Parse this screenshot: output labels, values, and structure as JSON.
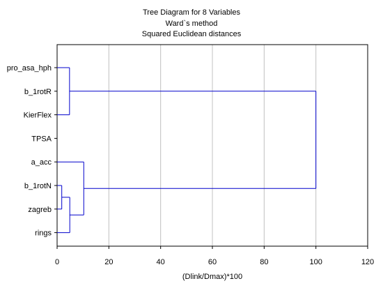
{
  "chart_data": {
    "type": "dendrogram",
    "title_lines": [
      "Tree Diagram for 8 Variables",
      "Ward`s method",
      "Squared Euclidean distances"
    ],
    "xlabel": "(Dlink/Dmax)*100",
    "ylabel": "",
    "xlim": [
      0,
      120
    ],
    "xticks": [
      0,
      20,
      40,
      60,
      80,
      100,
      120
    ],
    "grid": "vertical",
    "orientation": "horizontal",
    "leaves": [
      "pro_asa_hph",
      "b_1rotR",
      "KierFlex",
      "TPSA",
      "a_acc",
      "b_1rotN",
      "zagreb",
      "rings"
    ],
    "merges": [
      {
        "left": "b_1rotN",
        "right": "zagreb",
        "height": 1.8,
        "id": "c1"
      },
      {
        "left": "c1",
        "right": "rings",
        "height": 4.9,
        "id": "c2"
      },
      {
        "left": "pro_asa_hph",
        "right": "KierFlex",
        "height": 4.8,
        "id": "c3"
      },
      {
        "left": "a_acc",
        "right": "c2",
        "height": 10.3,
        "id": "c4"
      },
      {
        "left": "c3",
        "right": "c4",
        "height": 100,
        "id": "c5"
      }
    ],
    "line_color": "#0000cc",
    "grid_color": "#c0c0c0"
  }
}
